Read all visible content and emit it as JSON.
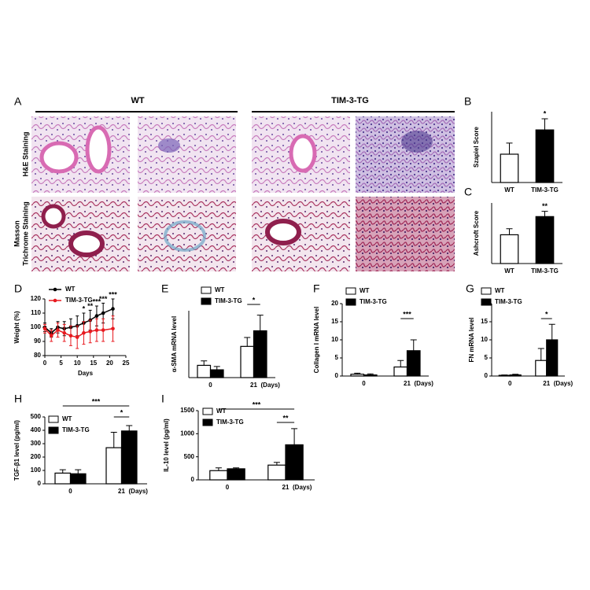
{
  "figure_a": {
    "panel": "A",
    "groups": [
      "WT",
      "TIM-3-TG"
    ],
    "rows": [
      [
        "H&E Staining"
      ],
      [
        "Masson",
        "Trichrome Staining"
      ]
    ]
  },
  "chart_data": [
    {
      "panel": "B",
      "type": "bar",
      "y_label": "Szapiel Score",
      "categories": [
        "WT",
        "TIM-3-TG"
      ],
      "values": [
        1.4,
        2.6
      ],
      "errors": [
        0.55,
        0.55
      ],
      "colors": [
        "#ffffff",
        "#000000"
      ],
      "ylim": [
        0,
        3.5
      ],
      "annotations": [
        "*"
      ]
    },
    {
      "panel": "C",
      "type": "bar",
      "y_label": "Ashcroft Score",
      "categories": [
        "WT",
        "TIM-3-TG"
      ],
      "values": [
        3.8,
        6.2
      ],
      "errors": [
        0.8,
        0.7
      ],
      "colors": [
        "#ffffff",
        "#000000"
      ],
      "ylim": [
        0,
        8
      ],
      "annotations": [
        "**"
      ]
    },
    {
      "panel": "D",
      "type": "line",
      "y_label": "Weight (%)",
      "x_label": "Days",
      "x": [
        0,
        2,
        4,
        6,
        8,
        10,
        12,
        14,
        16,
        18,
        21
      ],
      "series": [
        {
          "name": "WT",
          "color": "#000000",
          "values": [
            100,
            96,
            100,
            99,
            100,
            101,
            103,
            105,
            108,
            110,
            113
          ],
          "errors": [
            3,
            3,
            4,
            5,
            6,
            7,
            7,
            7,
            7,
            7,
            7
          ]
        },
        {
          "name": "TIM-3-TG",
          "color": "#e8191f",
          "values": [
            99,
            94,
            98,
            96,
            94,
            93,
            96,
            97,
            98,
            98,
            99
          ],
          "errors": [
            3,
            4,
            5,
            6,
            7,
            8,
            8,
            8,
            8,
            8,
            9
          ]
        }
      ],
      "xlim": [
        0,
        25
      ],
      "xticks": [
        0,
        5,
        10,
        15,
        20,
        25
      ],
      "ylim": [
        80,
        120
      ],
      "yticks": [
        80,
        90,
        100,
        110,
        120
      ],
      "annotations": [
        {
          "text": "*",
          "x": 12
        },
        {
          "text": "**",
          "x": 14
        },
        {
          "text": "***",
          "x": 16
        },
        {
          "text": "***",
          "x": 18
        },
        {
          "text": "***",
          "x": 21
        }
      ]
    },
    {
      "panel": "E",
      "type": "bar",
      "y_label": "α-SMA mRNA level",
      "categories": [
        "0",
        "21"
      ],
      "x_unit": "(Days)",
      "series": [
        {
          "name": "WT",
          "color": "#ffffff",
          "values": [
            0.55,
            1.4
          ],
          "errors": [
            0.2,
            0.4
          ]
        },
        {
          "name": "TIM-3-TG",
          "color": "#000000",
          "values": [
            0.35,
            2.1
          ],
          "errors": [
            0.15,
            0.7
          ]
        }
      ],
      "ylim": [
        0,
        3
      ],
      "annotations": [
        "*"
      ]
    },
    {
      "panel": "F",
      "type": "bar",
      "y_label": "Collagen I mRNA level",
      "categories": [
        "0",
        "21"
      ],
      "x_unit": "(Days)",
      "series": [
        {
          "name": "WT",
          "color": "#ffffff",
          "values": [
            0.5,
            2.5
          ],
          "errors": [
            0.3,
            1.8
          ]
        },
        {
          "name": "TIM-3-TG",
          "color": "#000000",
          "values": [
            0.3,
            7.0
          ],
          "errors": [
            0.3,
            3.0
          ]
        }
      ],
      "ylim": [
        0,
        20
      ],
      "yticks": [
        0,
        5,
        10,
        15,
        20
      ],
      "annotations": [
        "***"
      ]
    },
    {
      "panel": "G",
      "type": "bar",
      "y_label": "FN mRNA level",
      "categories": [
        "0",
        "21"
      ],
      "x_unit": "(Days)",
      "series": [
        {
          "name": "WT",
          "color": "#ffffff",
          "values": [
            0.2,
            4.3
          ],
          "errors": [
            0.1,
            3.3
          ]
        },
        {
          "name": "TIM-3-TG",
          "color": "#000000",
          "values": [
            0.3,
            10.0
          ],
          "errors": [
            0.2,
            4.3
          ]
        }
      ],
      "ylim": [
        0,
        20
      ],
      "yticks": [
        0,
        5,
        10,
        15,
        20
      ],
      "annotations": [
        "*"
      ]
    },
    {
      "panel": "H",
      "type": "bar",
      "y_label": "TGF-β1 level (pg/ml)",
      "categories": [
        "0",
        "21"
      ],
      "x_unit": "(Days)",
      "series": [
        {
          "name": "WT",
          "color": "#ffffff",
          "values": [
            80,
            270
          ],
          "errors": [
            25,
            115
          ]
        },
        {
          "name": "TIM-3-TG",
          "color": "#000000",
          "values": [
            75,
            395
          ],
          "errors": [
            30,
            40
          ]
        }
      ],
      "ylim": [
        0,
        500
      ],
      "yticks": [
        0,
        100,
        200,
        300,
        400,
        500
      ],
      "annotations": [
        "***",
        "*"
      ]
    },
    {
      "panel": "I",
      "type": "bar",
      "y_label": "IL-10 level (pg/ml)",
      "categories": [
        "0",
        "21"
      ],
      "x_unit": "(Days)",
      "series": [
        {
          "name": "WT",
          "color": "#ffffff",
          "values": [
            200,
            320
          ],
          "errors": [
            60,
            60
          ]
        },
        {
          "name": "TIM-3-TG",
          "color": "#000000",
          "values": [
            240,
            760
          ],
          "errors": [
            20,
            350
          ]
        }
      ],
      "ylim": [
        0,
        1500
      ],
      "yticks": [
        0,
        500,
        1000,
        1500
      ],
      "annotations": [
        "***",
        "**"
      ]
    }
  ]
}
